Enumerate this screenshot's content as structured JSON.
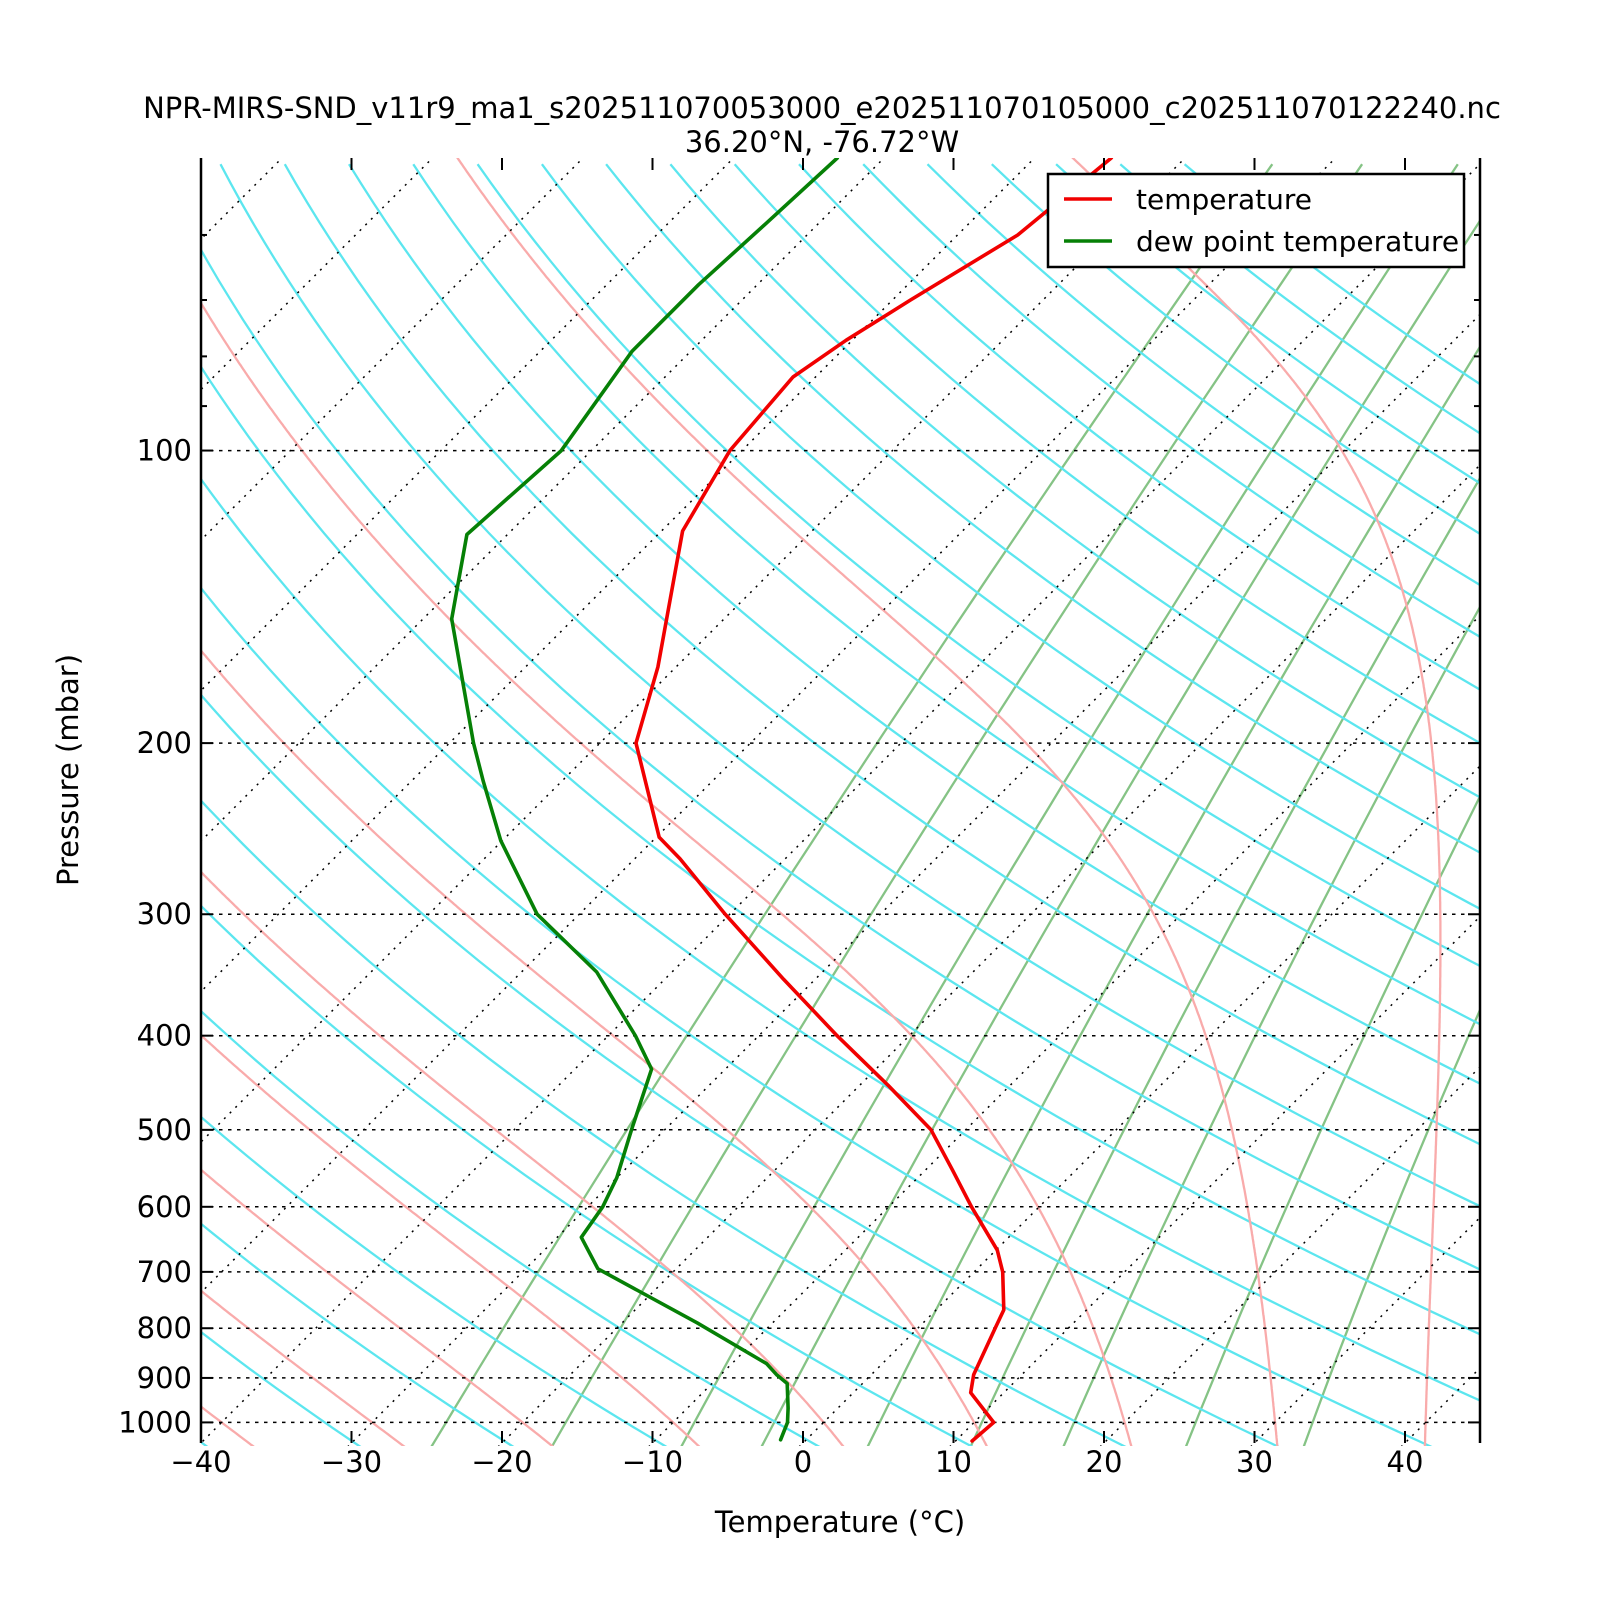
{
  "title": "NPR-MIRS-SND_v11r9_ma1_s202511070053000_e202511070105000_c202511070122240.nc",
  "subtitle": "36.20°N, -76.72°W",
  "x_axis": {
    "label": "Temperature (°C)",
    "ticks": [
      -40,
      -30,
      -20,
      -10,
      0,
      10,
      20,
      30,
      40
    ],
    "range": [
      -40,
      45
    ],
    "unit": "°C"
  },
  "y_axis": {
    "label": "Pressure (mbar)",
    "ticks": [
      100,
      200,
      300,
      400,
      500,
      600,
      700,
      800,
      900,
      1000
    ],
    "minor_ticks": [
      60,
      70,
      80,
      90
    ],
    "range": [
      50,
      1050
    ],
    "scale": "log",
    "unit": "mbar"
  },
  "legend": [
    {
      "label": "temperature",
      "color": "#f10000"
    },
    {
      "label": "dew point temperature",
      "color": "#068006"
    }
  ],
  "colors": {
    "isobar_isotherm_grid": "#000000",
    "dry_adiabats": "#5ce6ef",
    "moist_adiabats": "#f9abab",
    "mixing_ratio_lines": "#85c385",
    "temperature_curve": "#f10000",
    "dew_point_curve": "#068006",
    "background": "#ffffff"
  },
  "background_reference_lines": {
    "plot_style": "skew-T log-P",
    "skew_degrees": 45,
    "isotherms_c": [
      -120,
      -110,
      -100,
      -90,
      -80,
      -70,
      -60,
      -50,
      -40,
      -30,
      -20,
      -10,
      0,
      10,
      20,
      30,
      40
    ],
    "dry_adiabats_theta_k": [
      230,
      240,
      250,
      260,
      270,
      280,
      290,
      300,
      310,
      320,
      330,
      340,
      350,
      360,
      370,
      380,
      390,
      400,
      410,
      420,
      430,
      440,
      450,
      460,
      470,
      480,
      490,
      500
    ],
    "moist_adiabats_t1000_c": [
      -40,
      -30,
      -20,
      -10,
      0,
      10,
      20,
      30,
      40
    ],
    "mixing_ratios_g_kg": [
      0.5,
      1,
      2,
      3,
      5,
      8,
      12,
      20,
      32
    ]
  },
  "chart_data": {
    "type": "line",
    "subtype": "skew-T sounding",
    "title": "NPR-MIRS-SND_v11r9_ma1_s202511070053000_e202511070105000_c202511070122240.nc",
    "location": "36.20°N, -76.72°W",
    "xlabel": "Temperature (°C)",
    "ylabel": "Pressure (mbar)",
    "xlim": [
      -40,
      45
    ],
    "ylim": [
      1050,
      50
    ],
    "y_scale": "log",
    "legend_position": "upper right",
    "grid": "dotted isobars and skewed isotherms",
    "series": [
      {
        "name": "temperature",
        "color": "#f10000",
        "points_pressure_mbar_temp_c": [
          [
            1045,
            11.1
          ],
          [
            1000,
            11.3
          ],
          [
            932,
            7.8
          ],
          [
            893,
            6.8
          ],
          [
            798,
            5.1
          ],
          [
            766,
            4.5
          ],
          [
            700,
            1.9
          ],
          [
            665,
            0.1
          ],
          [
            600,
            -4.5
          ],
          [
            550,
            -8.2
          ],
          [
            500,
            -12.3
          ],
          [
            450,
            -18.1
          ],
          [
            400,
            -24.8
          ],
          [
            350,
            -32.1
          ],
          [
            300,
            -40.3
          ],
          [
            263,
            -47.0
          ],
          [
            250,
            -49.8
          ],
          [
            200,
            -57.6
          ],
          [
            167,
            -61.2
          ],
          [
            121,
            -68.6
          ],
          [
            100,
            -70.8
          ],
          [
            84,
            -71.5
          ],
          [
            77,
            -70.4
          ],
          [
            70,
            -68.8
          ],
          [
            60,
            -66.0
          ],
          [
            50,
            -64.9
          ]
        ]
      },
      {
        "name": "dew point temperature",
        "color": "#068006",
        "points_pressure_mbar_temp_c": [
          [
            1042,
            -1.7
          ],
          [
            1000,
            -2.4
          ],
          [
            967,
            -3.3
          ],
          [
            912,
            -5.0
          ],
          [
            893,
            -6.3
          ],
          [
            870,
            -7.7
          ],
          [
            790,
            -15.0
          ],
          [
            695,
            -25.2
          ],
          [
            645,
            -28.4
          ],
          [
            600,
            -29.0
          ],
          [
            560,
            -30.0
          ],
          [
            500,
            -32.2
          ],
          [
            433,
            -34.9
          ],
          [
            400,
            -38.2
          ],
          [
            344,
            -45.0
          ],
          [
            300,
            -52.8
          ],
          [
            252,
            -60.1
          ],
          [
            219,
            -65.2
          ],
          [
            200,
            -68.4
          ],
          [
            149,
            -78.1
          ],
          [
            122,
            -82.7
          ],
          [
            100,
            -82.0
          ],
          [
            79,
            -83.9
          ],
          [
            67.5,
            -83.9
          ],
          [
            58.5,
            -83.5
          ],
          [
            50,
            -83.1
          ]
        ]
      }
    ]
  }
}
